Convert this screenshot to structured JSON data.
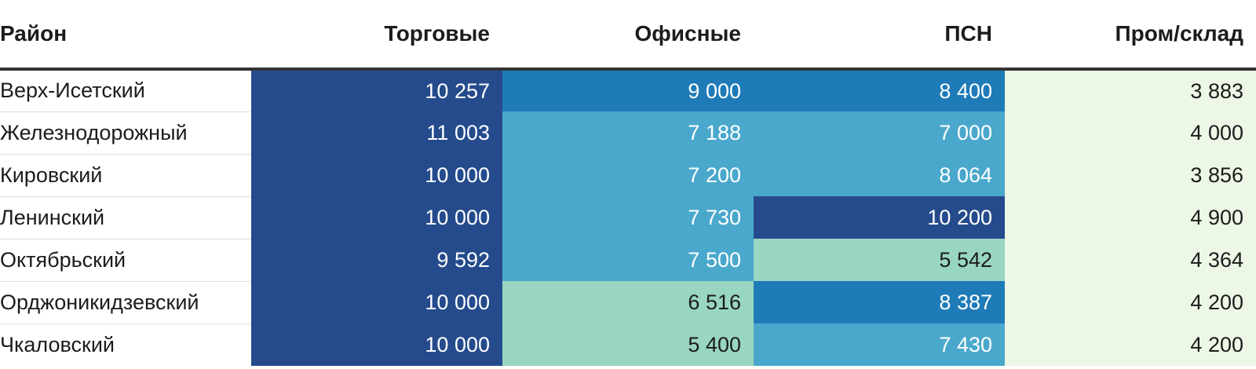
{
  "chart_data": {
    "type": "heatmap",
    "columns": [
      "Район",
      "Торговые",
      "Офисные",
      "ПСН",
      "Пром/склад"
    ],
    "rows": [
      {
        "name": "Верх-Исетский",
        "values": [
          10257,
          9000,
          8400,
          3883
        ],
        "labels": [
          "10 257",
          "9 000",
          "8 400",
          "3 883"
        ]
      },
      {
        "name": "Железнодорожный",
        "values": [
          11003,
          7188,
          7000,
          4000
        ],
        "labels": [
          "11 003",
          "7 188",
          "7 000",
          "4 000"
        ]
      },
      {
        "name": "Кировский",
        "values": [
          10000,
          7200,
          8064,
          3856
        ],
        "labels": [
          "10 000",
          "7 200",
          "8 064",
          "3 856"
        ]
      },
      {
        "name": "Ленинский",
        "values": [
          10000,
          7730,
          10200,
          4900
        ],
        "labels": [
          "10 000",
          "7 730",
          "10 200",
          "4 900"
        ]
      },
      {
        "name": "Октябрьский",
        "values": [
          9592,
          7500,
          5542,
          4364
        ],
        "labels": [
          "9 592",
          "7 500",
          "5 542",
          "4 364"
        ]
      },
      {
        "name": "Орджоникидзевский",
        "values": [
          10000,
          6516,
          8387,
          4200
        ],
        "labels": [
          "10 000",
          "6 516",
          "8 387",
          "4 200"
        ]
      },
      {
        "name": "Чкаловский",
        "values": [
          10000,
          5400,
          7430,
          4200
        ],
        "labels": [
          "10 000",
          "5 400",
          "7 430",
          "4 200"
        ]
      }
    ],
    "color_scale": [
      {
        "min": 9500,
        "color": "#254b8c",
        "text_color": "#ffffff"
      },
      {
        "min": 8300,
        "color": "#1f7bb8",
        "text_color": "#ffffff"
      },
      {
        "min": 6800,
        "color": "#4aa8cc",
        "text_color": "#ffffff"
      },
      {
        "min": 5000,
        "color": "#98d6c1",
        "text_color": "#1c1c1c"
      },
      {
        "min": 0,
        "color": "#edf7e6",
        "text_color": "#1c1c1c"
      }
    ]
  }
}
